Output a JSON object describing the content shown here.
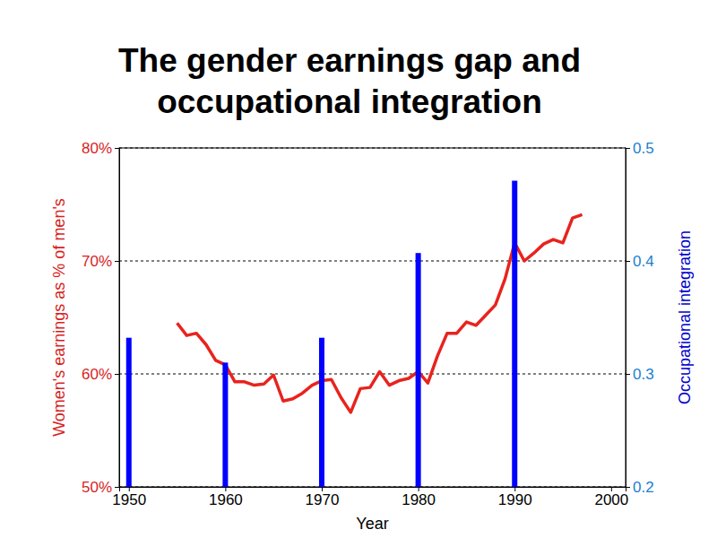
{
  "chart_data": {
    "type": "line",
    "title": "The gender earnings gap and\noccupational integration",
    "xlabel": "Year",
    "ylabel": "Women's earnings as % of men's",
    "y2label": "Occupational integration",
    "xlim": [
      1949,
      2001.5
    ],
    "xticks": [
      1950,
      1960,
      1970,
      1980,
      1990,
      2000
    ],
    "ylim": [
      50,
      80
    ],
    "yticks": [
      {
        "value": 50,
        "label": "50%"
      },
      {
        "value": 60,
        "label": "60%"
      },
      {
        "value": 70,
        "label": "70%"
      },
      {
        "value": 80,
        "label": "80%"
      }
    ],
    "y2lim": [
      0.2,
      0.5
    ],
    "y2ticks": [
      0.2,
      0.3,
      0.4,
      0.5
    ],
    "grid": true,
    "series": [
      {
        "type": "line",
        "color": "#e8231e",
        "x": [
          1955,
          1956,
          1957,
          1958,
          1959,
          1960,
          1961,
          1962,
          1963,
          1964,
          1965,
          1966,
          1967,
          1968,
          1969,
          1970,
          1971,
          1972,
          1973,
          1974,
          1975,
          1976,
          1977,
          1978,
          1979,
          1980,
          1981,
          1982,
          1983,
          1984,
          1985,
          1986,
          1987,
          1988,
          1989,
          1990,
          1991,
          1992,
          1993,
          1994,
          1995,
          1996,
          1997
        ],
        "values": [
          64.5,
          63.4,
          63.6,
          62.6,
          61.2,
          60.8,
          59.3,
          59.3,
          59.0,
          59.1,
          59.9,
          57.6,
          57.8,
          58.3,
          59.0,
          59.4,
          59.5,
          57.9,
          56.6,
          58.7,
          58.8,
          60.2,
          59.0,
          59.4,
          59.6,
          60.2,
          59.2,
          61.6,
          63.6,
          63.6,
          64.6,
          64.3,
          65.2,
          66.1,
          68.4,
          71.6,
          70.0,
          70.7,
          71.5,
          71.9,
          71.6,
          73.8,
          74.1
        ]
      },
      {
        "type": "bar",
        "axis": "y2",
        "color": "#0000ff",
        "x": [
          1950,
          1960,
          1970,
          1980,
          1990
        ],
        "values": [
          0.332,
          0.31,
          0.332,
          0.407,
          0.471
        ]
      }
    ]
  }
}
